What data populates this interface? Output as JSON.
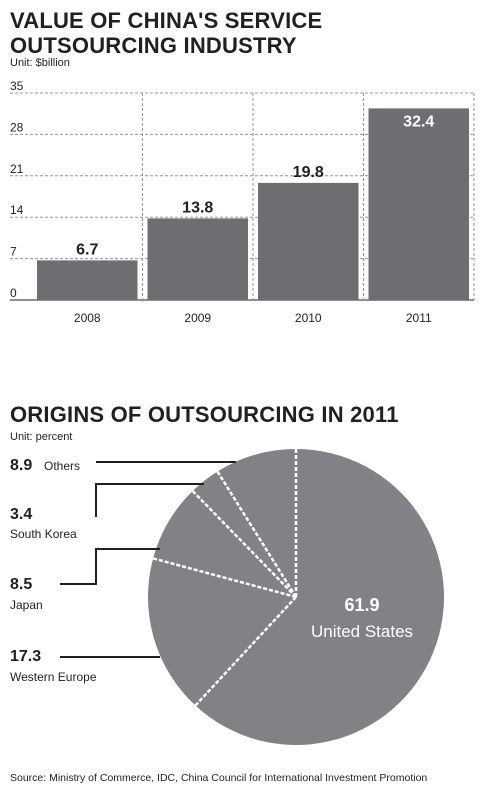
{
  "colors": {
    "bar": "#6d6e71",
    "pie": "#808285",
    "text": "#231f20",
    "grid": "#939598",
    "inner_label": "#ffffff"
  },
  "titles": {
    "chart1": "VALUE OF CHINA'S SERVICE OUTSOURCING INDUSTRY",
    "chart1_unit": "Unit: $billion",
    "chart2": "ORIGINS OF OUTSOURCING IN 2011",
    "chart2_unit": "Unit: percent"
  },
  "source": "Source: Ministry of Commerce, IDC, China Council for International Investment Promotion",
  "chart_data": [
    {
      "type": "bar",
      "title": "VALUE OF CHINA'S SERVICE OUTSOURCING INDUSTRY",
      "subtitle": "Unit: $billion",
      "categories": [
        "2008",
        "2009",
        "2010",
        "2011"
      ],
      "values": [
        6.7,
        13.8,
        19.8,
        32.4
      ],
      "value_labels": [
        "6.7",
        "13.8",
        "19.8",
        "32.4"
      ],
      "yticks": [
        0,
        7,
        14,
        21,
        28,
        35
      ],
      "ylim": [
        0,
        35
      ],
      "grid": "dashed vertical and horizontal",
      "legend": "none"
    },
    {
      "type": "pie",
      "title": "ORIGINS OF OUTSOURCING IN 2011",
      "subtitle": "Unit: percent",
      "slices": [
        {
          "label": "United States",
          "value": 61.9,
          "value_label": "61.9"
        },
        {
          "label": "Western Europe",
          "value": 17.3,
          "value_label": "17.3"
        },
        {
          "label": "Japan",
          "value": 8.5,
          "value_label": "8.5"
        },
        {
          "label": "South Korea",
          "value": 3.4,
          "value_label": "3.4"
        },
        {
          "label": "Others",
          "value": 8.9,
          "value_label": "8.9"
        }
      ],
      "legend": "callout labels on left"
    }
  ]
}
